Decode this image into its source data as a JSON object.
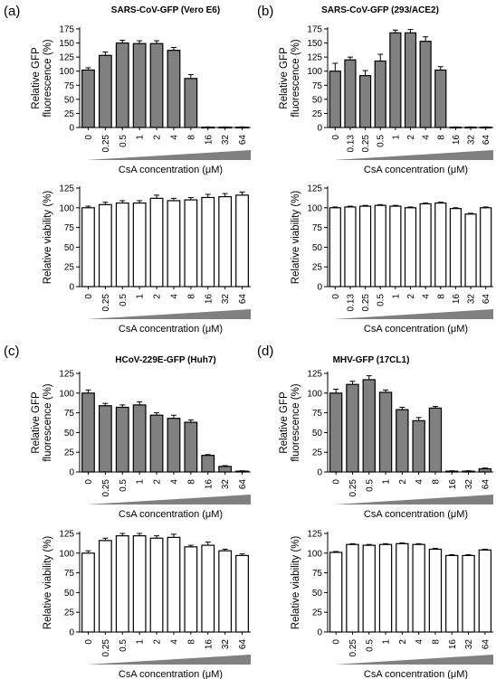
{
  "figure": {
    "panel_labels": [
      "(a)",
      "(b)",
      "(c)",
      "(d)"
    ]
  },
  "colors": {
    "gfp_bar": "#808080",
    "viability_bar": "#ffffff",
    "outline": "#000000",
    "wedge": "#808080"
  },
  "chart_data": [
    {
      "id": "a-gfp",
      "panel": "(a)",
      "type": "bar",
      "title": "SARS-CoV-GFP (Vero E6)",
      "ylabel": "Relative GFP fluorescence (%)",
      "xlabel": "CsA concentration (μM)",
      "categories": [
        "0",
        "0.25",
        "0.5",
        "1",
        "2",
        "4",
        "8",
        "16",
        "32",
        "64"
      ],
      "values": [
        102,
        128,
        150,
        149,
        149,
        137,
        87,
        0.5,
        0.5,
        0.5
      ],
      "errors": [
        4,
        6,
        5,
        5,
        5,
        5,
        7,
        0.5,
        0.5,
        0.5
      ],
      "yticks": [
        0,
        25,
        50,
        75,
        100,
        125,
        150,
        175
      ],
      "ylim": [
        0,
        175
      ],
      "bar_color": "#808080"
    },
    {
      "id": "a-viab",
      "panel": "(a)",
      "type": "bar",
      "title": "",
      "ylabel": "Relative viability (%)",
      "xlabel": "CsA concentration (μM)",
      "categories": [
        "0",
        "0.25",
        "0.5",
        "1",
        "2",
        "4",
        "8",
        "16",
        "32",
        "64"
      ],
      "values": [
        100,
        104,
        106,
        106,
        112,
        109,
        110,
        113,
        114,
        116
      ],
      "errors": [
        2,
        3,
        3,
        3,
        4,
        3,
        3,
        4,
        4,
        4
      ],
      "yticks": [
        0,
        25,
        50,
        75,
        100,
        125
      ],
      "ylim": [
        0,
        125
      ],
      "bar_color": "#ffffff"
    },
    {
      "id": "b-gfp",
      "panel": "(b)",
      "type": "bar",
      "title": "SARS-CoV-GFP (293/ACE2)",
      "ylabel": "Relative GFP fluorescence (%)",
      "xlabel": "CsA concentration (μM)",
      "categories": [
        "0",
        "0.13",
        "0.25",
        "0.5",
        "1",
        "2",
        "4",
        "8",
        "16",
        "32",
        "64"
      ],
      "values": [
        100,
        120,
        92,
        118,
        168,
        168,
        153,
        102,
        0.5,
        0.5,
        0.5
      ],
      "errors": [
        14,
        5,
        9,
        12,
        5,
        6,
        8,
        6,
        0.5,
        0.5,
        0.5
      ],
      "yticks": [
        0,
        25,
        50,
        75,
        100,
        125,
        150,
        175
      ],
      "ylim": [
        0,
        175
      ],
      "bar_color": "#808080"
    },
    {
      "id": "b-viab",
      "panel": "(b)",
      "type": "bar",
      "title": "",
      "ylabel": "Relative viability (%)",
      "xlabel": "CsA concentration (μM)",
      "categories": [
        "0",
        "0.13",
        "0.25",
        "0.5",
        "1",
        "2",
        "4",
        "8",
        "16",
        "32",
        "64"
      ],
      "values": [
        100,
        101,
        102,
        103,
        102,
        100,
        105,
        106,
        99,
        92,
        100
      ],
      "errors": [
        1,
        1,
        1,
        1,
        1,
        1,
        1,
        1,
        1,
        1,
        1
      ],
      "yticks": [
        0,
        25,
        50,
        75,
        100,
        125
      ],
      "ylim": [
        0,
        125
      ],
      "bar_color": "#ffffff"
    },
    {
      "id": "c-gfp",
      "panel": "(c)",
      "type": "bar",
      "title": "HCoV-229E-GFP (Huh7)",
      "ylabel": "Relative GFP fluorescence (%)",
      "xlabel": "CsA concentration (μM)",
      "categories": [
        "0",
        "0.25",
        "0.5",
        "1",
        "2",
        "4",
        "8",
        "16",
        "32",
        "64"
      ],
      "values": [
        100,
        84,
        82,
        85,
        72,
        68,
        63,
        21,
        7,
        1
      ],
      "errors": [
        4,
        3,
        3,
        4,
        3,
        4,
        3,
        1,
        1,
        0.5
      ],
      "yticks": [
        0,
        25,
        50,
        75,
        100,
        125
      ],
      "ylim": [
        0,
        125
      ],
      "bar_color": "#808080"
    },
    {
      "id": "c-viab",
      "panel": "(c)",
      "type": "bar",
      "title": "",
      "ylabel": "Relative viability (%)",
      "xlabel": "CsA concentration (μM)",
      "categories": [
        "0",
        "0.25",
        "0.5",
        "1",
        "2",
        "4",
        "8",
        "16",
        "32",
        "64"
      ],
      "values": [
        100,
        116,
        122,
        122,
        119,
        120,
        108,
        110,
        103,
        97
      ],
      "errors": [
        3,
        3,
        3,
        3,
        3,
        4,
        2,
        4,
        2,
        2
      ],
      "yticks": [
        0,
        25,
        50,
        75,
        100,
        125
      ],
      "ylim": [
        0,
        125
      ],
      "bar_color": "#ffffff"
    },
    {
      "id": "d-gfp",
      "panel": "(d)",
      "type": "bar",
      "title": "MHV-GFP (17CL1)",
      "ylabel": "Relative GFP fluorescence (%)",
      "xlabel": "CsA concentration (μM)",
      "categories": [
        "0",
        "0.25",
        "0.5",
        "1",
        "2",
        "4",
        "8",
        "16",
        "32",
        "64"
      ],
      "values": [
        100,
        111,
        117,
        101,
        79,
        65,
        81,
        1,
        1,
        4
      ],
      "errors": [
        5,
        4,
        5,
        3,
        3,
        4,
        2,
        0.5,
        0.5,
        1
      ],
      "yticks": [
        0,
        25,
        50,
        75,
        100,
        125
      ],
      "ylim": [
        0,
        125
      ],
      "bar_color": "#808080"
    },
    {
      "id": "d-viab",
      "panel": "(d)",
      "type": "bar",
      "title": "",
      "ylabel": "Relative viability (%)",
      "xlabel": "CsA concentration (μM)",
      "categories": [
        "0",
        "0.25",
        "0.5",
        "1",
        "2",
        "4",
        "8",
        "16",
        "32",
        "64"
      ],
      "values": [
        101,
        111,
        110,
        111,
        112,
        111,
        105,
        97,
        97,
        104
      ],
      "errors": [
        1,
        1,
        1,
        1,
        1,
        1,
        1,
        1,
        1,
        1
      ],
      "yticks": [
        0,
        25,
        50,
        75,
        100,
        125
      ],
      "ylim": [
        0,
        125
      ],
      "bar_color": "#ffffff"
    }
  ]
}
